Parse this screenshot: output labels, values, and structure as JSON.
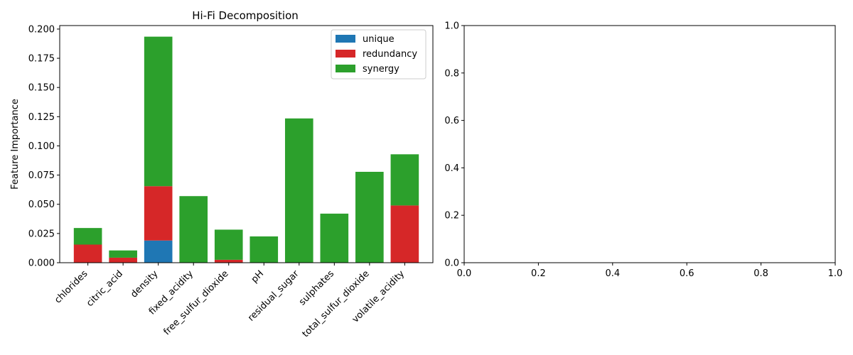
{
  "chart_data": [
    {
      "type": "bar",
      "stacked": true,
      "title": "Hi-Fi Decomposition",
      "xlabel": "",
      "ylabel": "Feature Importance",
      "ylim": [
        0,
        0.203
      ],
      "yticks": [
        "0.000",
        "0.025",
        "0.050",
        "0.075",
        "0.100",
        "0.125",
        "0.150",
        "0.175",
        "0.200"
      ],
      "legend_position": "upper-right",
      "categories": [
        "chlorides",
        "citric_acid",
        "density",
        "fixed_acidity",
        "free_sulfur_dioxide",
        "pH",
        "residual_sugar",
        "sulphates",
        "total_sulfur_dioxide",
        "volatile_acidity"
      ],
      "series": [
        {
          "name": "unique",
          "color": "#1f77b4",
          "values": [
            0.0,
            0.0,
            0.019,
            0.0,
            0.0,
            0.0,
            0.0,
            0.0,
            0.0,
            0.0
          ]
        },
        {
          "name": "redundancy",
          "color": "#d62728",
          "values": [
            0.0155,
            0.0043,
            0.0465,
            0.0,
            0.0025,
            0.0,
            0.0,
            0.0,
            0.0,
            0.049
          ]
        },
        {
          "name": "synergy",
          "color": "#2ca02c",
          "values": [
            0.0142,
            0.0062,
            0.128,
            0.057,
            0.0258,
            0.0225,
            0.1235,
            0.042,
            0.0778,
            0.0438
          ]
        }
      ]
    },
    {
      "type": "empty",
      "title": "",
      "xlabel": "",
      "ylabel": "",
      "xlim": [
        0,
        1
      ],
      "ylim": [
        0,
        1
      ],
      "xticks": [
        "0.0",
        "0.2",
        "0.4",
        "0.6",
        "0.8",
        "1.0"
      ],
      "yticks": [
        "0.0",
        "0.2",
        "0.4",
        "0.6",
        "0.8",
        "1.0"
      ]
    }
  ]
}
